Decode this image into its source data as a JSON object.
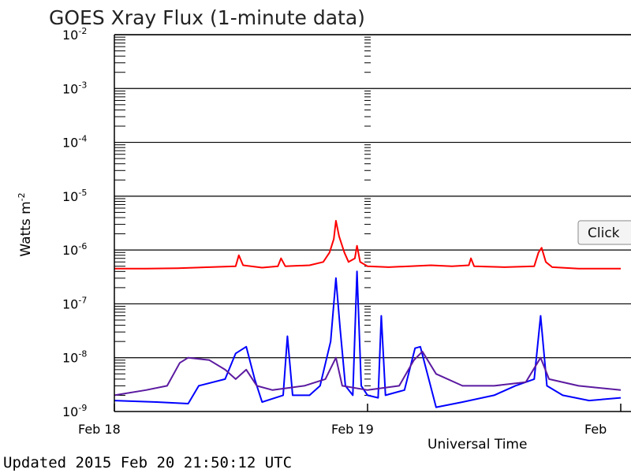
{
  "chart_data": {
    "type": "line",
    "title": "GOES Xray Flux (1-minute data)",
    "ylabel": "Watts m",
    "ylabel_sup": "-2",
    "xlabel": "Universal Time",
    "y_scale": "log",
    "ylim": [
      1e-09,
      0.01
    ],
    "y_ticks": [
      {
        "base": "10",
        "exp": "-9"
      },
      {
        "base": "10",
        "exp": "-8"
      },
      {
        "base": "10",
        "exp": "-7"
      },
      {
        "base": "10",
        "exp": "-6"
      },
      {
        "base": "10",
        "exp": "-5"
      },
      {
        "base": "10",
        "exp": "-4"
      },
      {
        "base": "10",
        "exp": "-3"
      },
      {
        "base": "10",
        "exp": "-2"
      }
    ],
    "x_ticks": [
      {
        "label": "Feb 18",
        "value": 0
      },
      {
        "label": "Feb 19",
        "value": 24
      },
      {
        "label": "Feb",
        "value": 48
      }
    ],
    "xlim_hours": [
      0,
      48
    ],
    "grid": true,
    "series": [
      {
        "color": "#ff0000",
        "points": [
          [
            0,
            4.5e-07
          ],
          [
            3,
            4.5e-07
          ],
          [
            6,
            4.6e-07
          ],
          [
            9,
            4.8e-07
          ],
          [
            11.5,
            5e-07
          ],
          [
            11.8,
            8e-07
          ],
          [
            12.2,
            5.2e-07
          ],
          [
            14,
            4.7e-07
          ],
          [
            15.5,
            5e-07
          ],
          [
            15.8,
            7e-07
          ],
          [
            16.2,
            5e-07
          ],
          [
            18.5,
            5.2e-07
          ],
          [
            19.8,
            6e-07
          ],
          [
            20.4,
            9e-07
          ],
          [
            20.8,
            1.6e-06
          ],
          [
            21.0,
            3.5e-06
          ],
          [
            21.3,
            1.8e-06
          ],
          [
            21.8,
            9e-07
          ],
          [
            22.2,
            6e-07
          ],
          [
            22.8,
            7e-07
          ],
          [
            23.0,
            1.2e-06
          ],
          [
            23.3,
            6e-07
          ],
          [
            24,
            5e-07
          ],
          [
            26,
            4.8e-07
          ],
          [
            28,
            5e-07
          ],
          [
            30,
            5.2e-07
          ],
          [
            32,
            5e-07
          ],
          [
            33.6,
            5.2e-07
          ],
          [
            33.8,
            7e-07
          ],
          [
            34.1,
            5e-07
          ],
          [
            37,
            4.8e-07
          ],
          [
            39.8,
            5e-07
          ],
          [
            40.2,
            9e-07
          ],
          [
            40.5,
            1.1e-06
          ],
          [
            40.9,
            6e-07
          ],
          [
            41.5,
            4.8e-07
          ],
          [
            44,
            4.5e-07
          ],
          [
            48,
            4.5e-07
          ]
        ]
      },
      {
        "color": "#0000ff",
        "points": [
          [
            0,
            1.6e-09
          ],
          [
            4,
            1.5e-09
          ],
          [
            7,
            1.4e-09
          ],
          [
            8,
            3e-09
          ],
          [
            10.5,
            4e-09
          ],
          [
            11.5,
            1.2e-08
          ],
          [
            12.5,
            1.6e-08
          ],
          [
            13.3,
            4e-09
          ],
          [
            14,
            1.5e-09
          ],
          [
            16,
            2e-09
          ],
          [
            16.4,
            2.5e-08
          ],
          [
            16.9,
            2e-09
          ],
          [
            18.5,
            2e-09
          ],
          [
            19.5,
            3e-09
          ],
          [
            20.5,
            2e-08
          ],
          [
            21.0,
            3e-07
          ],
          [
            21.4,
            3.5e-08
          ],
          [
            21.9,
            3e-09
          ],
          [
            22.6,
            2e-09
          ],
          [
            23.0,
            4e-07
          ],
          [
            23.4,
            3e-09
          ],
          [
            24,
            2e-09
          ],
          [
            25,
            1.8e-09
          ],
          [
            25.3,
            6e-08
          ],
          [
            25.7,
            2e-09
          ],
          [
            27.5,
            2.5e-09
          ],
          [
            28.5,
            1.5e-08
          ],
          [
            29.0,
            1.6e-08
          ],
          [
            30.5,
            1.2e-09
          ],
          [
            33,
            1.5e-09
          ],
          [
            36,
            2e-09
          ],
          [
            38,
            3e-09
          ],
          [
            39.8,
            4e-09
          ],
          [
            40.4,
            6e-08
          ],
          [
            41.0,
            3e-09
          ],
          [
            42.5,
            2e-09
          ],
          [
            45,
            1.6e-09
          ],
          [
            48,
            1.8e-09
          ]
        ]
      },
      {
        "color": "#5b1aa0",
        "points": [
          [
            0,
            2e-09
          ],
          [
            3,
            2.5e-09
          ],
          [
            5,
            3e-09
          ],
          [
            6.2,
            8e-09
          ],
          [
            7,
            1e-08
          ],
          [
            9,
            9e-09
          ],
          [
            10.5,
            6e-09
          ],
          [
            11.5,
            4e-09
          ],
          [
            12.5,
            6e-09
          ],
          [
            13.5,
            3e-09
          ],
          [
            15,
            2.5e-09
          ],
          [
            18,
            3e-09
          ],
          [
            20,
            4e-09
          ],
          [
            21.0,
            1e-08
          ],
          [
            21.6,
            3e-09
          ],
          [
            24,
            2.5e-09
          ],
          [
            27,
            3e-09
          ],
          [
            28.4,
            9e-09
          ],
          [
            29.2,
            1.3e-08
          ],
          [
            30.5,
            5e-09
          ],
          [
            33,
            3e-09
          ],
          [
            36,
            3e-09
          ],
          [
            39,
            3.5e-09
          ],
          [
            40.4,
            1e-08
          ],
          [
            41.2,
            4e-09
          ],
          [
            44,
            3e-09
          ],
          [
            48,
            2.5e-09
          ]
        ]
      }
    ]
  },
  "tooltip": {
    "label": "Click"
  },
  "updated": "Updated 2015 Feb 20 21:50:12 UTC"
}
